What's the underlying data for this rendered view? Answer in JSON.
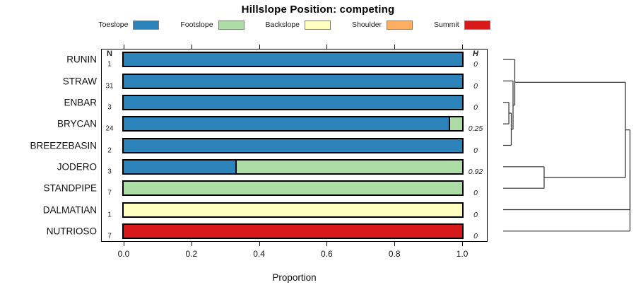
{
  "title": "Hillslope Position: competing",
  "legend": {
    "items": [
      {
        "label": "Toeslope",
        "color": "#2B83BA"
      },
      {
        "label": "Footslope",
        "color": "#ABDDA4"
      },
      {
        "label": "Backslope",
        "color": "#FFFFBF"
      },
      {
        "label": "Shoulder",
        "color": "#FDAE61"
      },
      {
        "label": "Summit",
        "color": "#D7191C"
      }
    ]
  },
  "columns": {
    "n_header": "N",
    "h_header": "H"
  },
  "x_axis": {
    "label": "Proportion",
    "ticks": [
      "0.0",
      "0.2",
      "0.4",
      "0.6",
      "0.8",
      "1.0"
    ]
  },
  "rows": [
    {
      "name": "RUNIN",
      "n": "1",
      "h": "0",
      "segments": [
        {
          "class": "Toeslope",
          "value": 1.0
        }
      ]
    },
    {
      "name": "STRAW",
      "n": "31",
      "h": "0",
      "segments": [
        {
          "class": "Toeslope",
          "value": 1.0
        }
      ]
    },
    {
      "name": "ENBAR",
      "n": "3",
      "h": "0",
      "segments": [
        {
          "class": "Toeslope",
          "value": 1.0
        }
      ]
    },
    {
      "name": "BRYCAN",
      "n": "24",
      "h": "0.25",
      "segments": [
        {
          "class": "Toeslope",
          "value": 0.96
        },
        {
          "class": "Footslope",
          "value": 0.04
        }
      ]
    },
    {
      "name": "BREEZEBASIN",
      "n": "2",
      "h": "0",
      "segments": [
        {
          "class": "Toeslope",
          "value": 1.0
        }
      ]
    },
    {
      "name": "JODERO",
      "n": "3",
      "h": "0.92",
      "segments": [
        {
          "class": "Toeslope",
          "value": 0.33
        },
        {
          "class": "Footslope",
          "value": 0.67
        }
      ]
    },
    {
      "name": "STANDPIPE",
      "n": "7",
      "h": "0",
      "segments": [
        {
          "class": "Footslope",
          "value": 1.0
        }
      ]
    },
    {
      "name": "DALMATIAN",
      "n": "1",
      "h": "0",
      "segments": [
        {
          "class": "Backslope",
          "value": 1.0
        }
      ]
    },
    {
      "name": "NUTRIOSO",
      "n": "7",
      "h": "0",
      "segments": [
        {
          "class": "Summit",
          "value": 1.0
        }
      ]
    }
  ],
  "dendrogram": {
    "merges": [
      {
        "id": "m1",
        "a": 2,
        "b": 3,
        "h": 0.045
      },
      {
        "id": "m2",
        "a": "m1",
        "b": 4,
        "h": 0.064
      },
      {
        "id": "m3",
        "a": 1,
        "b": "m2",
        "h": 0.078
      },
      {
        "id": "m4",
        "a": 0,
        "b": "m3",
        "h": 0.092
      },
      {
        "id": "m5",
        "a": 5,
        "b": 6,
        "h": 0.323
      },
      {
        "id": "m6",
        "a": "m4",
        "b": "m5",
        "h": 0.964
      },
      {
        "id": "m7",
        "a": "m6",
        "b": 7,
        "h": 1.0
      },
      {
        "id": "m8",
        "a": "m7",
        "b": 8,
        "h": 1.0
      }
    ]
  },
  "chart_data": {
    "type": "bar",
    "orientation": "horizontal",
    "stacked": true,
    "title": "Hillslope Position: competing",
    "categories": [
      "RUNIN",
      "STRAW",
      "ENBAR",
      "BRYCAN",
      "BREEZEBASIN",
      "JODERO",
      "STANDPIPE",
      "DALMATIAN",
      "NUTRIOSO"
    ],
    "series": [
      {
        "name": "Toeslope",
        "values": [
          1,
          1,
          1,
          0.96,
          1,
          0.33,
          0,
          0,
          0
        ]
      },
      {
        "name": "Footslope",
        "values": [
          0,
          0,
          0,
          0.04,
          0,
          0.67,
          1,
          0,
          0
        ]
      },
      {
        "name": "Backslope",
        "values": [
          0,
          0,
          0,
          0,
          0,
          0,
          0,
          1,
          0
        ]
      },
      {
        "name": "Shoulder",
        "values": [
          0,
          0,
          0,
          0,
          0,
          0,
          0,
          0,
          0
        ]
      },
      {
        "name": "Summit",
        "values": [
          0,
          0,
          0,
          0,
          0,
          0,
          0,
          0,
          1
        ]
      }
    ],
    "n_values": [
      1,
      31,
      3,
      24,
      2,
      3,
      7,
      1,
      7
    ],
    "h_values": [
      0,
      0,
      0,
      0.25,
      0,
      0.92,
      0,
      0,
      0
    ],
    "xlabel": "Proportion",
    "xlim": [
      0,
      1
    ],
    "x_ticks": [
      0.0,
      0.2,
      0.4,
      0.6,
      0.8,
      1.0
    ],
    "legend_position": "top",
    "right_panel": "cluster-dendrogram"
  }
}
